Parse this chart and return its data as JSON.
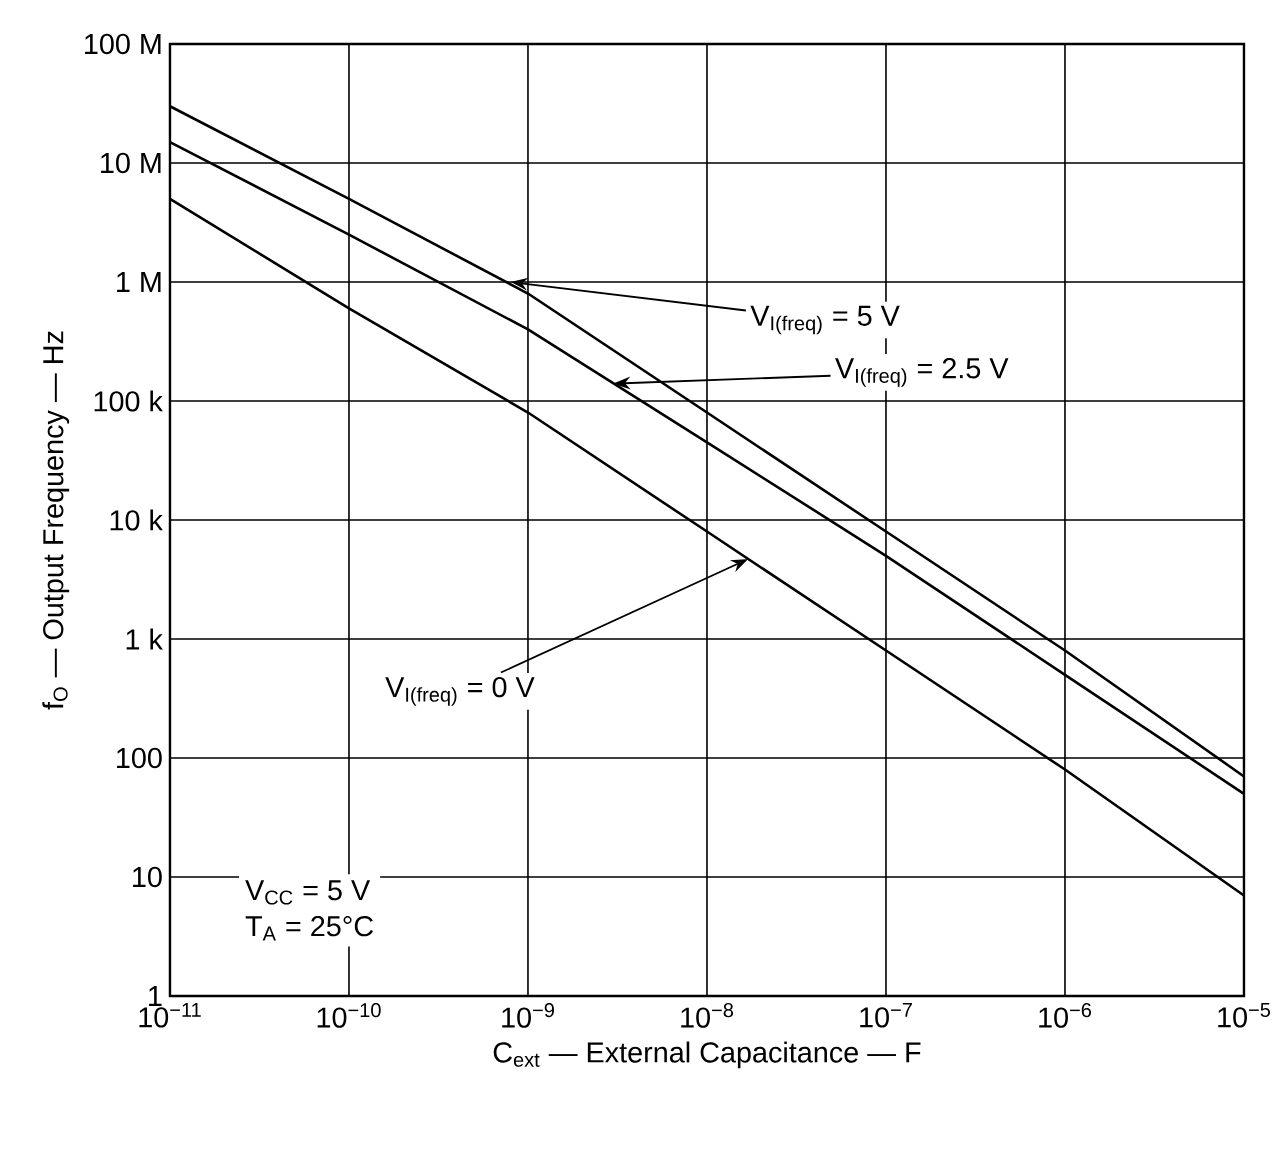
{
  "chart_data": {
    "type": "line",
    "xlabel": "C$_{ext}$ — External Capacitance — F",
    "ylabel": "f$_{O}$ — Output Frequency — Hz",
    "log": "xy",
    "grid": true,
    "marker": "none",
    "line_style": "solid",
    "xlim": [
      1e-11,
      1e-05
    ],
    "ylim": [
      1,
      100000000
    ],
    "xticks": [
      {
        "value": 1e-11,
        "label": "10$^{−11}$"
      },
      {
        "value": 1e-10,
        "label": "10$^{−10}$"
      },
      {
        "value": 1e-09,
        "label": "10$^{−9}$"
      },
      {
        "value": 1e-08,
        "label": "10$^{−8}$"
      },
      {
        "value": 1e-07,
        "label": "10$^{−7}$"
      },
      {
        "value": 1e-06,
        "label": "10$^{−6}$"
      },
      {
        "value": 1e-05,
        "label": "10$^{−5}$"
      }
    ],
    "yticks": [
      1,
      10,
      100,
      {
        "value": 1000,
        "label": "1 k"
      },
      {
        "value": 10000,
        "label": "10 k"
      },
      {
        "value": 100000,
        "label": "100 k"
      },
      {
        "value": 1000000,
        "label": "1 M"
      },
      {
        "value": 10000000,
        "label": "10 M"
      },
      {
        "value": 100000000,
        "label": "100 M"
      }
    ],
    "x": [
      1e-11,
      1e-10,
      1e-09,
      1e-08,
      1e-07,
      1e-06,
      1e-05
    ],
    "series": [
      {
        "color": "#000000",
        "values": [
          30000000,
          5000000,
          800000,
          80000,
          8000,
          800,
          70
        ]
      },
      {
        "color": "#000000",
        "values": [
          15000000,
          2500000,
          400000,
          45000,
          5000,
          500,
          50
        ]
      },
      {
        "color": "#000000",
        "values": [
          5000000,
          600000,
          80000,
          8000,
          800,
          80,
          7
        ]
      }
    ],
    "annotations": [
      {
        "text": "V$_{I(freq)}$ = 5 V",
        "x": 8e-10,
        "y": 1000000
      },
      {
        "text": "V$_{I(freq)}$ = 2.5 V",
        "x": 3e-09,
        "y": 140000
      },
      {
        "text": "V$_{I(freq)}$ = 0 V",
        "x": 1.7e-08,
        "y": 4700
      },
      "V$_{CC}$ = 5 V",
      "T$_{A}$ = 25°C"
    ]
  }
}
